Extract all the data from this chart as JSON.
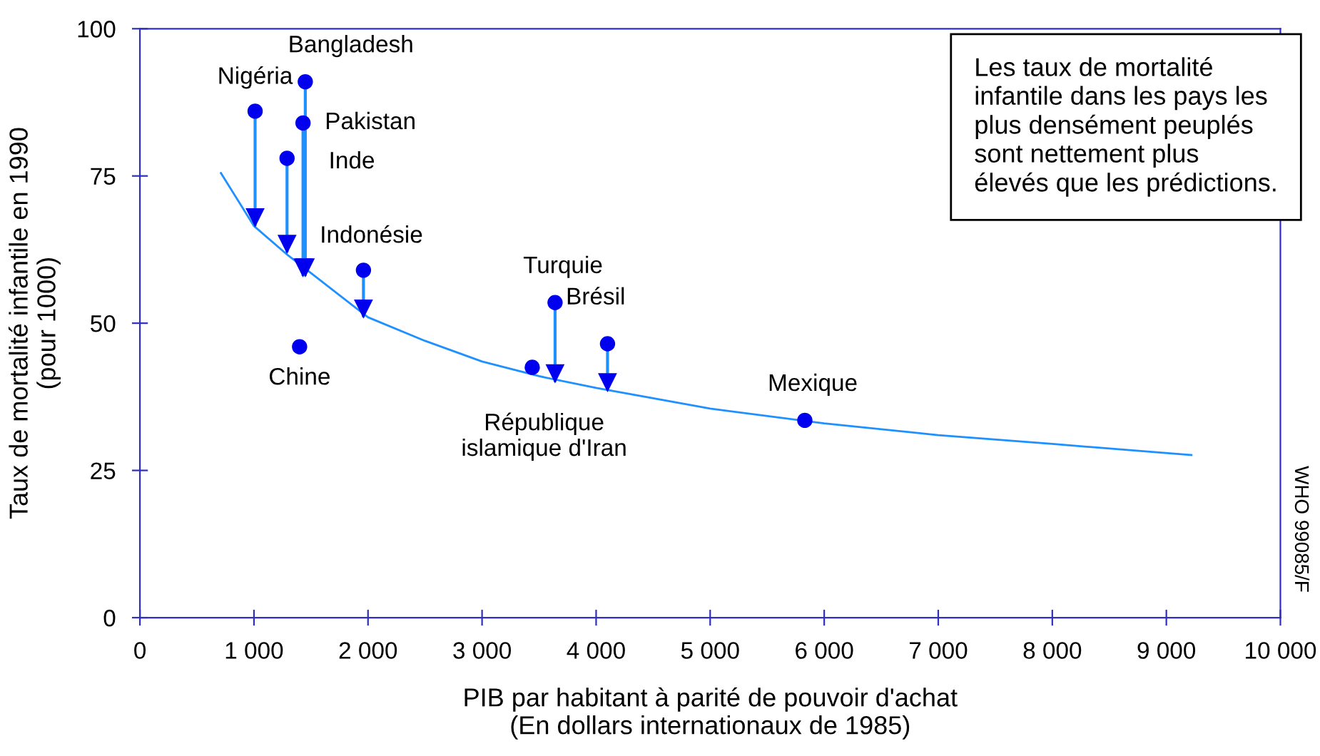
{
  "chart_data": {
    "type": "scatter",
    "xlabel": "PIB par habitant à parité de pouvoir d'achat\n(En dollars internationaux de 1985)",
    "ylabel": "Taux de mortalité infantile en 1990\n(pour 1000)",
    "xlim": [
      0,
      10000
    ],
    "xticks": [
      0,
      {
        "value": 1000,
        "label": "1 000"
      },
      {
        "value": 2000,
        "label": "2 000"
      },
      {
        "value": 3000,
        "label": "3 000"
      },
      {
        "value": 4000,
        "label": "4 000"
      },
      {
        "value": 5000,
        "label": "5 000"
      },
      {
        "value": 6000,
        "label": "6 000"
      },
      {
        "value": 7000,
        "label": "7 000"
      },
      {
        "value": 8000,
        "label": "8 000"
      },
      {
        "value": 9000,
        "label": "9 000"
      },
      {
        "value": 10000,
        "label": "10 000"
      }
    ],
    "ylim": [
      0,
      100
    ],
    "yticks": [
      0,
      25,
      50,
      75,
      100
    ],
    "grid": false,
    "series": [
      {
        "color": "#0000ee",
        "marker": "circle",
        "x": [
          1010,
          1450,
          1430,
          1290,
          1960,
          1400,
          3640,
          4100,
          3440,
          5830
        ],
        "values": [
          86,
          91,
          84,
          78,
          59,
          46,
          53.5,
          46.5,
          42.5,
          33.5
        ],
        "errors": [
          [
            66.5,
            86
          ],
          [
            58,
            91
          ],
          [
            58,
            84
          ],
          [
            62,
            78
          ],
          [
            51,
            59
          ],
          null,
          [
            40,
            53.5
          ],
          [
            38.5,
            46.5
          ],
          null,
          null
        ]
      },
      {
        "type": "line",
        "color": "#1e90ff",
        "marker": "none",
        "line_style": "solid",
        "x": [
          710,
          1000,
          1300,
          1500,
          2000,
          2500,
          3000,
          3500,
          4000,
          5000,
          6000,
          7000,
          8000,
          9220
        ],
        "values": [
          75.5,
          66.5,
          61.5,
          58.5,
          51,
          47,
          43.5,
          41,
          39,
          35.5,
          33,
          31,
          29.5,
          27.6
        ]
      }
    ],
    "annotations": [
      {
        "text": "Nigéria",
        "x": 1010,
        "y": 86
      },
      {
        "text": "Bangladesh",
        "x": 1450,
        "y": 91
      },
      {
        "text": "Pakistan",
        "x": 1430,
        "y": 84
      },
      {
        "text": "Inde",
        "x": 1290,
        "y": 78
      },
      {
        "text": "Indonésie",
        "x": 1960,
        "y": 59
      },
      {
        "text": "Chine",
        "x": 1400,
        "y": 46
      },
      {
        "text": "Turquie",
        "x": 3640,
        "y": 53.5
      },
      {
        "text": "Brésil",
        "x": 4100,
        "y": 46.5
      },
      {
        "text": "République\nislamique d'Iran",
        "x": 3440,
        "y": 42.5
      },
      {
        "text": "Mexique",
        "x": 5830,
        "y": 33.5
      },
      "Les taux de mortalité\ninfantile dans les pays les\nplus densément peuplés\nsont nettement plus\nélevés que les prédictions.",
      "WHO 99085/F"
    ]
  }
}
